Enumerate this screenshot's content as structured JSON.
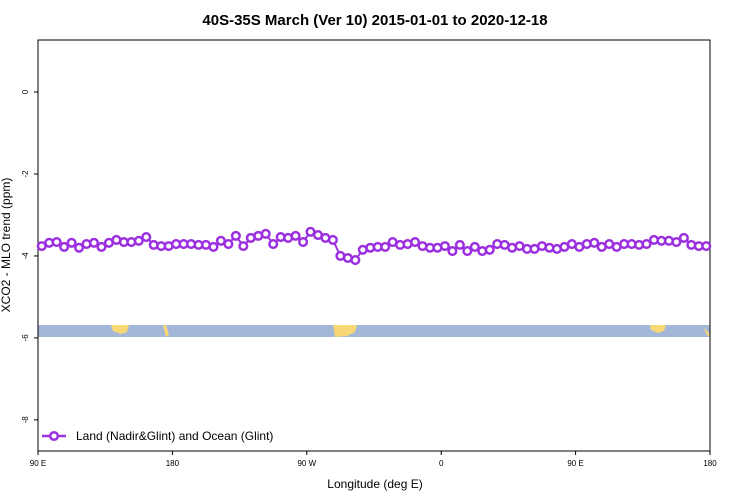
{
  "chart_data": {
    "type": "line",
    "title": "40S-35S March (Ver 10)   2015-01-01 to 2020-12-18",
    "xlabel": "Longitude (deg E)",
    "ylabel": "XCO2 - MLO trend (ppm)",
    "xlim": [
      90,
      540
    ],
    "ylim": [
      -8.76,
      1.27
    ],
    "xticks": [
      {
        "value": 90,
        "label": "90 E"
      },
      {
        "value": 180,
        "label": "180"
      },
      {
        "value": 270,
        "label": "90 W"
      },
      {
        "value": 360,
        "label": "0"
      },
      {
        "value": 450,
        "label": "90 E"
      },
      {
        "value": 540,
        "label": "180"
      }
    ],
    "yticks": [
      0,
      -2,
      -4,
      -6,
      -8
    ],
    "legend": "bottom-left",
    "x": [
      92.5,
      97.5,
      102.5,
      107.5,
      112.5,
      117.5,
      122.5,
      127.5,
      132.5,
      137.5,
      142.5,
      147.5,
      152.5,
      157.5,
      162.5,
      167.5,
      172.5,
      177.5,
      182.5,
      187.5,
      192.5,
      197.5,
      202.5,
      207.5,
      212.5,
      217.5,
      222.5,
      227.5,
      232.5,
      237.5,
      242.5,
      247.5,
      252.5,
      257.5,
      262.5,
      267.5,
      272.5,
      277.5,
      282.5,
      287.5,
      292.5,
      297.5,
      302.5,
      307.5,
      312.5,
      317.5,
      322.5,
      327.5,
      332.5,
      337.5,
      342.5,
      347.5,
      352.5,
      357.5,
      362.5,
      367.5,
      372.5,
      377.5,
      382.5,
      387.5,
      392.5,
      397.5,
      402.5,
      407.5,
      412.5,
      417.5,
      422.5,
      427.5,
      432.5,
      437.5,
      442.5,
      447.5,
      452.5,
      457.5,
      462.5,
      467.5,
      472.5,
      477.5,
      482.5,
      487.5,
      492.5,
      497.5,
      502.5,
      507.5,
      512.5,
      517.5,
      522.5,
      527.5,
      532.5,
      537.5
    ],
    "series": [
      {
        "name": "Land (Nadir&Glint) and Ocean (Glint)",
        "color": "#9b30e0",
        "values": [
          -3.76,
          -3.68,
          -3.66,
          -3.78,
          -3.68,
          -3.8,
          -3.71,
          -3.68,
          -3.78,
          -3.68,
          -3.61,
          -3.66,
          -3.66,
          -3.63,
          -3.54,
          -3.73,
          -3.76,
          -3.76,
          -3.71,
          -3.71,
          -3.71,
          -3.73,
          -3.73,
          -3.78,
          -3.63,
          -3.71,
          -3.51,
          -3.76,
          -3.56,
          -3.51,
          -3.46,
          -3.71,
          -3.54,
          -3.56,
          -3.51,
          -3.66,
          -3.41,
          -3.49,
          -3.56,
          -3.61,
          -4.0,
          -4.05,
          -4.1,
          -3.85,
          -3.8,
          -3.78,
          -3.78,
          -3.66,
          -3.73,
          -3.71,
          -3.66,
          -3.76,
          -3.8,
          -3.8,
          -3.76,
          -3.88,
          -3.73,
          -3.88,
          -3.78,
          -3.88,
          -3.85,
          -3.71,
          -3.73,
          -3.8,
          -3.76,
          -3.83,
          -3.83,
          -3.76,
          -3.8,
          -3.83,
          -3.78,
          -3.71,
          -3.78,
          -3.71,
          -3.68,
          -3.78,
          -3.71,
          -3.78,
          -3.71,
          -3.71,
          -3.73,
          -3.71,
          -3.61,
          -3.63,
          -3.63,
          -3.66,
          -3.56,
          -3.73,
          -3.76,
          -3.76
        ]
      }
    ]
  }
}
